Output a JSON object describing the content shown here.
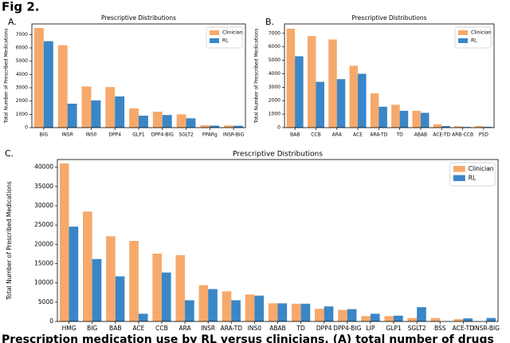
{
  "figure_label": "Fig 2.",
  "caption": "Prescription medication use by RL versus clinicians. (A) total number of drugs",
  "chart_data": [
    {
      "type": "bar",
      "panel_label": "A.",
      "title": "Prescriptive Distributions",
      "ylabel": "Total Number of Prescribed Medications",
      "categories": [
        "BIG",
        "INSR",
        "INS0",
        "DPP4",
        "GLP1",
        "DPP4-BIG",
        "SGLT2",
        "PPARg",
        "INSR-BIG"
      ],
      "series": [
        {
          "name": "Clinician",
          "color": "#f6a96b",
          "values": [
            7500,
            6200,
            3100,
            3050,
            1450,
            1200,
            1000,
            180,
            170
          ]
        },
        {
          "name": "RL",
          "color": "#3a86c6",
          "values": [
            6500,
            1800,
            2050,
            2350,
            900,
            950,
            700,
            150,
            140
          ]
        }
      ],
      "ylim": [
        0,
        7800
      ],
      "yticks": [
        0,
        1000,
        2000,
        3000,
        4000,
        5000,
        6000,
        7000
      ],
      "legend": "upper right"
    },
    {
      "type": "bar",
      "panel_label": "B.",
      "title": "Prescriptive Distributions",
      "ylabel": "Total Number of Prescribed Medications",
      "categories": [
        "BAB",
        "CCB",
        "ARA",
        "ACE",
        "ARA-TD",
        "TD",
        "ABAB",
        "ACE-TD",
        "ARB-CCB",
        "PSD"
      ],
      "series": [
        {
          "name": "Clinician",
          "color": "#f6a96b",
          "values": [
            7350,
            6800,
            6550,
            4600,
            2550,
            1700,
            1250,
            250,
            100,
            120
          ]
        },
        {
          "name": "RL",
          "color": "#3a86c6",
          "values": [
            5300,
            3400,
            3600,
            4000,
            1550,
            1250,
            1100,
            120,
            50,
            60
          ]
        }
      ],
      "ylim": [
        0,
        7700
      ],
      "yticks": [
        0,
        1000,
        2000,
        3000,
        4000,
        5000,
        6000,
        7000
      ],
      "legend": "upper right"
    },
    {
      "type": "bar",
      "panel_label": "C.",
      "title": "Prescriptive Distributions",
      "ylabel": "Total Number of Prescribed Medications",
      "categories": [
        "HMG",
        "BIG",
        "BAB",
        "ACE",
        "CCB",
        "ARA",
        "INSR",
        "ARA-TD",
        "INS0",
        "ABAB",
        "TD",
        "DPP4",
        "DPP4-BIG",
        "LIP",
        "GLP1",
        "SGLT2",
        "BSS",
        "ACE-TD",
        "INSR-BIG"
      ],
      "series": [
        {
          "name": "Clinician",
          "color": "#f6a96b",
          "values": [
            41000,
            28500,
            22100,
            20900,
            17600,
            17200,
            9400,
            7800,
            7000,
            4700,
            4600,
            3300,
            3000,
            1400,
            1400,
            900,
            900,
            600,
            0
          ]
        },
        {
          "name": "RL",
          "color": "#3a86c6",
          "values": [
            24600,
            16200,
            11700,
            2000,
            12700,
            5500,
            8400,
            5500,
            6700,
            4700,
            4600,
            3900,
            3200,
            2000,
            1500,
            3700,
            0,
            800,
            900
          ]
        }
      ],
      "ylim": [
        0,
        42000
      ],
      "yticks": [
        0,
        5000,
        10000,
        15000,
        20000,
        25000,
        30000,
        35000,
        40000
      ],
      "legend": "upper right"
    }
  ]
}
